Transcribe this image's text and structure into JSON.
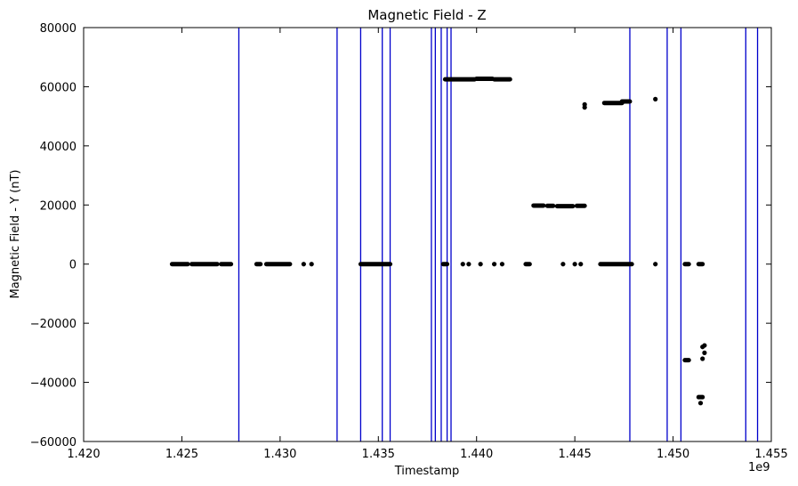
{
  "chart_data": {
    "type": "scatter",
    "title": "Magnetic Field - Z",
    "xlabel": "Timestamp",
    "ylabel": "Magnetic Field - Y (nT)",
    "x_offset_label": "1e9",
    "xlim": [
      1.42,
      1.455
    ],
    "ylim": [
      -60000,
      80000
    ],
    "x_ticks": [
      1.42,
      1.425,
      1.43,
      1.435,
      1.44,
      1.445,
      1.45,
      1.455
    ],
    "x_tick_labels": [
      "1.420",
      "1.425",
      "1.430",
      "1.435",
      "1.440",
      "1.445",
      "1.450",
      "1.455"
    ],
    "y_ticks": [
      -60000,
      -40000,
      -20000,
      0,
      20000,
      40000,
      60000,
      80000
    ],
    "y_tick_labels": [
      "−60000",
      "−40000",
      "−20000",
      "0",
      "20000",
      "40000",
      "60000",
      "80000"
    ],
    "grid": false,
    "marker_color": "#000000",
    "vline_color": "#0000cc",
    "vertical_lines_x": [
      1.4279,
      1.4329,
      1.4341,
      1.4352,
      1.4356,
      1.4377,
      1.4379,
      1.4382,
      1.4385,
      1.4387,
      1.4478,
      1.4497,
      1.4504,
      1.4537,
      1.4543
    ],
    "segments": [
      {
        "x": [
          1.4245,
          1.4253
        ],
        "y": 0
      },
      {
        "x": [
          1.4255,
          1.4268
        ],
        "y": 0
      },
      {
        "x": [
          1.427,
          1.4275
        ],
        "y": 0
      },
      {
        "x": [
          1.4288,
          1.429
        ],
        "y": 0
      },
      {
        "x": [
          1.4293,
          1.4305
        ],
        "y": 0
      },
      {
        "x": [
          1.4341,
          1.4356
        ],
        "y": 0
      },
      {
        "x": [
          1.4383,
          1.4385
        ],
        "y": 0
      },
      {
        "x": [
          1.4425,
          1.4427
        ],
        "y": 0
      },
      {
        "x": [
          1.4463,
          1.4479
        ],
        "y": 0
      },
      {
        "x": [
          1.4506,
          1.4508
        ],
        "y": 0
      },
      {
        "x": [
          1.4513,
          1.4515
        ],
        "y": 0
      },
      {
        "x": [
          1.4384,
          1.4399
        ],
        "y": 62500
      },
      {
        "x": [
          1.44,
          1.4408
        ],
        "y": 62700
      },
      {
        "x": [
          1.4409,
          1.4417
        ],
        "y": 62500
      },
      {
        "x": [
          1.4429,
          1.4434
        ],
        "y": 19800
      },
      {
        "x": [
          1.4436,
          1.4439
        ],
        "y": 19700
      },
      {
        "x": [
          1.4441,
          1.4449
        ],
        "y": 19600
      },
      {
        "x": [
          1.4451,
          1.4455
        ],
        "y": 19700
      },
      {
        "x": [
          1.4465,
          1.4474
        ],
        "y": 54500
      },
      {
        "x": [
          1.4474,
          1.4478
        ],
        "y": 55000
      },
      {
        "x": [
          1.4506,
          1.4508
        ],
        "y": -32500
      },
      {
        "x": [
          1.4513,
          1.4515
        ],
        "y": -45000
      }
    ],
    "points": [
      [
        1.4312,
        0
      ],
      [
        1.4316,
        0
      ],
      [
        1.4393,
        0
      ],
      [
        1.4396,
        0
      ],
      [
        1.4402,
        0
      ],
      [
        1.4409,
        0
      ],
      [
        1.4413,
        0
      ],
      [
        1.4444,
        0
      ],
      [
        1.445,
        0
      ],
      [
        1.4453,
        0
      ],
      [
        1.4491,
        0
      ],
      [
        1.4455,
        53000
      ],
      [
        1.4455,
        54000
      ],
      [
        1.4491,
        55800
      ],
      [
        1.4514,
        -47000
      ],
      [
        1.4515,
        -32000
      ],
      [
        1.4516,
        -30000
      ],
      [
        1.4515,
        -28000
      ],
      [
        1.4516,
        -27500
      ]
    ]
  }
}
